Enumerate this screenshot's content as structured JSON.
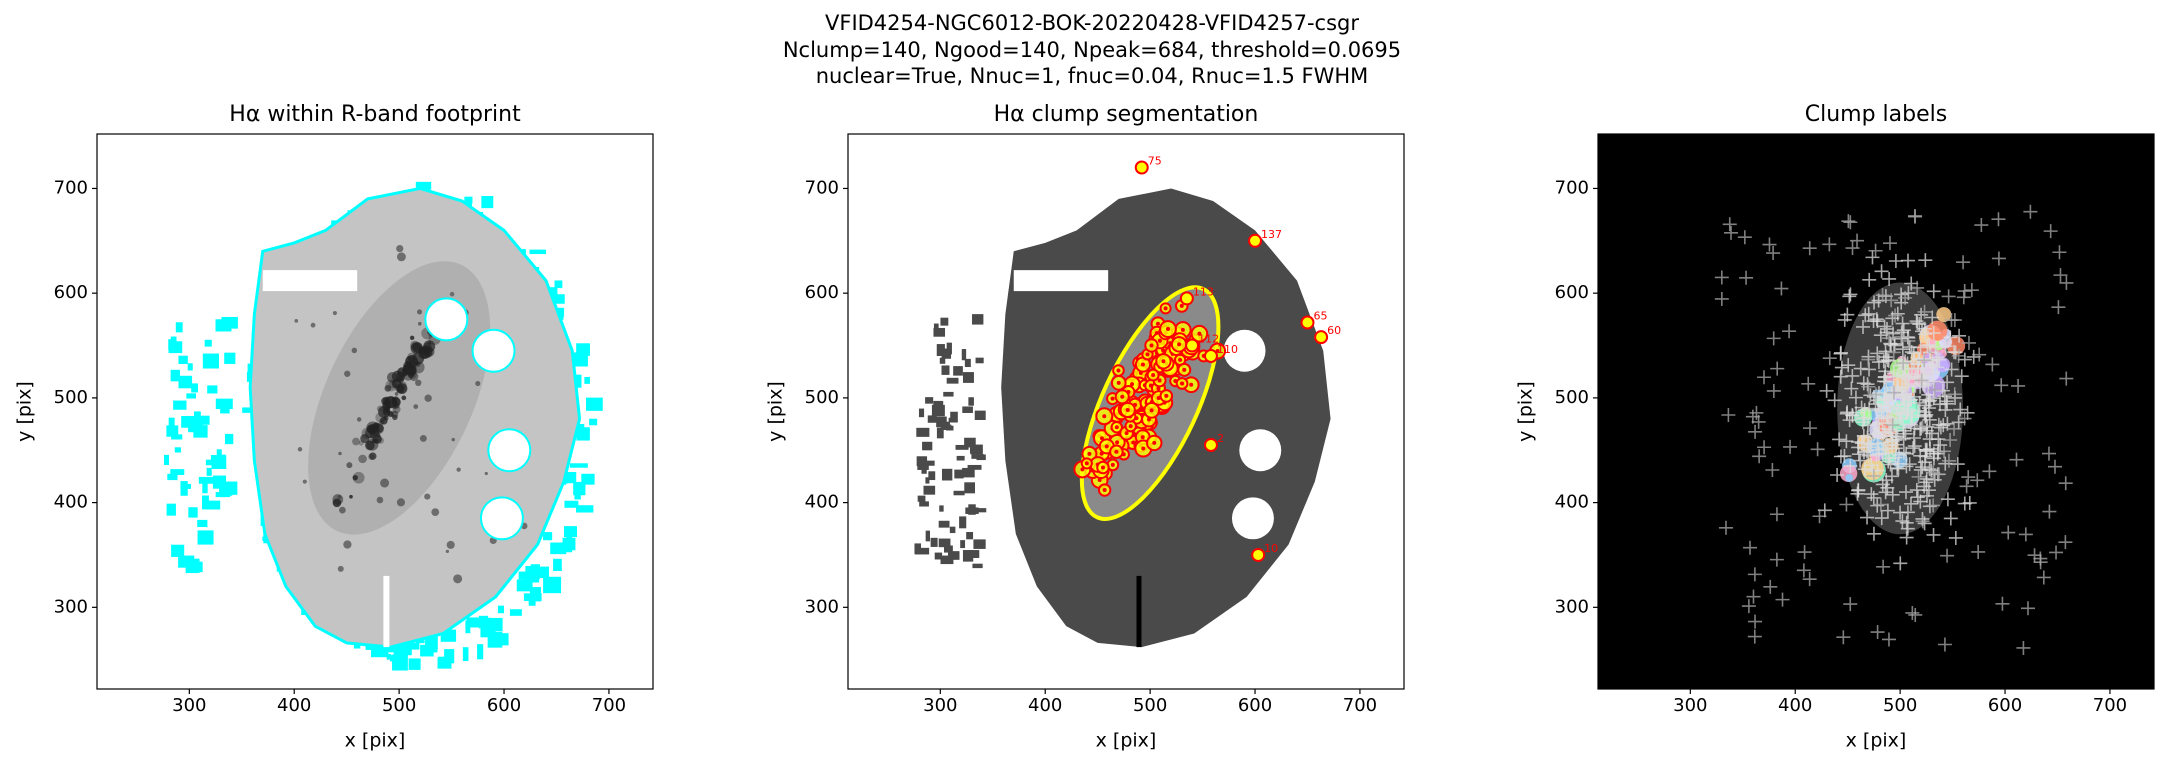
{
  "suptitle": [
    "VFID4254-NGC6012-BOK-20220428-VFID4257-csgr",
    "Nclump=140, Ngood=140, Npeak=684, threshold=0.0695",
    "nuclear=True, Nnuc=1, fnuc=0.04, Rnuc=1.5 FWHM"
  ],
  "chart_data": [
    {
      "type": "image",
      "title": "Hα within R-band footprint",
      "xlabel": "x [pix]",
      "ylabel": "y [pix]",
      "xlim": [
        212,
        742
      ],
      "ylim": [
        222,
        752
      ],
      "xticks": [
        300,
        400,
        500,
        600,
        700
      ],
      "yticks": [
        300,
        400,
        500,
        600,
        700
      ]
    },
    {
      "type": "image",
      "title": "Hα clump segmentation",
      "xlabel": "x [pix]",
      "ylabel": "y [pix]",
      "xlim": [
        212,
        742
      ],
      "ylim": [
        222,
        752
      ],
      "xticks": [
        300,
        400,
        500,
        600,
        700
      ],
      "yticks": [
        300,
        400,
        500,
        600,
        700
      ],
      "annotations": [
        {
          "label": "75",
          "x": 492,
          "y": 720
        },
        {
          "label": "137",
          "x": 600,
          "y": 650
        },
        {
          "label": "113",
          "x": 535,
          "y": 595
        },
        {
          "label": "112",
          "x": 540,
          "y": 550
        },
        {
          "label": "110",
          "x": 558,
          "y": 540
        },
        {
          "label": "65",
          "x": 650,
          "y": 572
        },
        {
          "label": "60",
          "x": 663,
          "y": 558
        },
        {
          "label": "10",
          "x": 603,
          "y": 350
        },
        {
          "label": "2",
          "x": 558,
          "y": 455
        }
      ]
    },
    {
      "type": "image",
      "title": "Clump labels",
      "xlabel": "x [pix]",
      "ylabel": "y [pix]",
      "xlim": [
        212,
        742
      ],
      "ylim": [
        222,
        752
      ],
      "xticks": [
        300,
        400,
        500,
        600,
        700
      ],
      "yticks": [
        300,
        400,
        500,
        600,
        700
      ]
    }
  ]
}
